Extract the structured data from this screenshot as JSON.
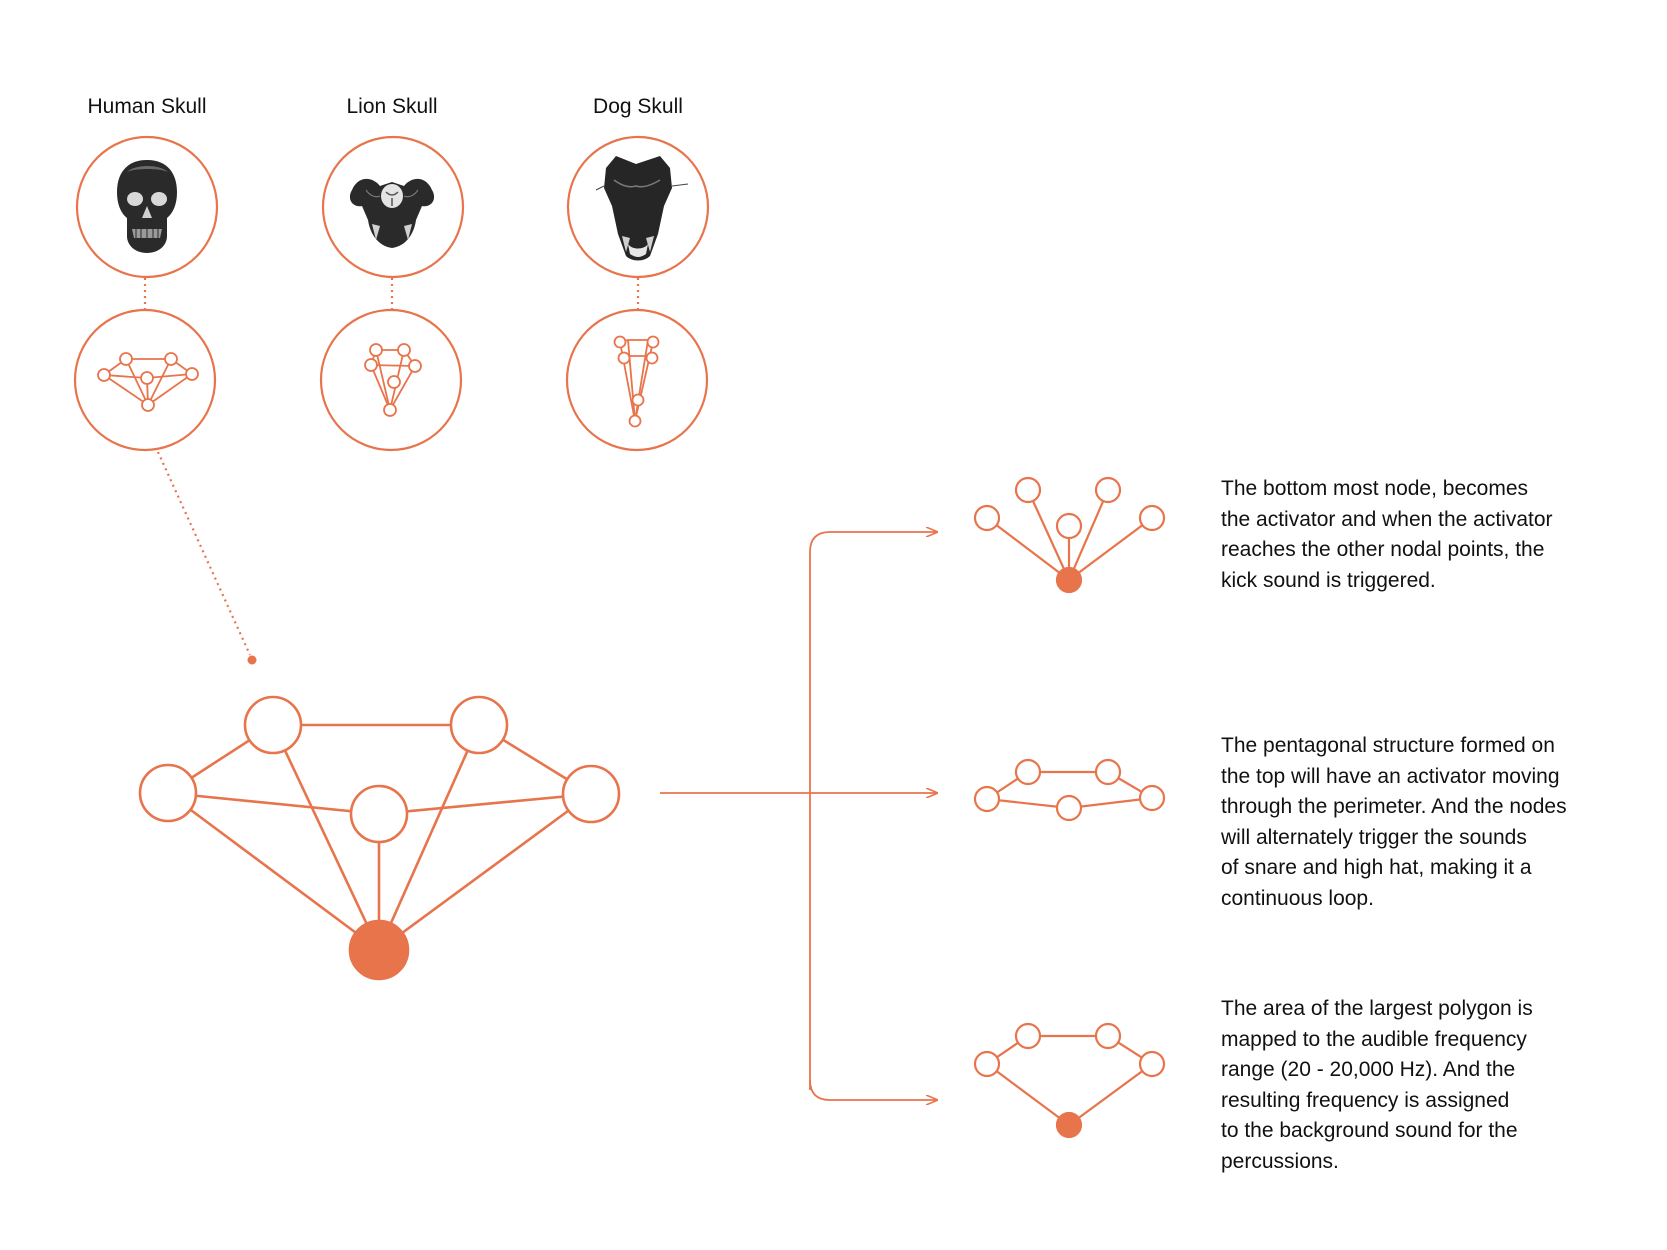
{
  "colors": {
    "accent": "#e8744c",
    "text": "#111111",
    "background": "#ffffff"
  },
  "skulls": [
    {
      "label": "Human Skull",
      "icon": "human-skull-icon"
    },
    {
      "label": "Lion Skull",
      "icon": "lion-skull-icon"
    },
    {
      "label": "Dog Skull",
      "icon": "dog-skull-icon"
    }
  ],
  "descriptions": {
    "kick": {
      "lines": [
        "The bottom most node, becomes",
        "the activator and when the activator",
        "reaches the other nodal points, the",
        "kick sound is triggered."
      ]
    },
    "snare": {
      "lines": [
        "The pentagonal structure formed on",
        "the top will have an activator moving",
        "through the perimeter. And the nodes",
        "will alternately trigger the sounds",
        "of snare and high hat, making it a",
        "continuous loop."
      ]
    },
    "frequency": {
      "lines": [
        "The area of the largest polygon is",
        "mapped to the audible frequency",
        "range (20 - 20,000 Hz). And the",
        "resulting frequency is assigned",
        "to the background sound for the",
        "percussions."
      ]
    }
  }
}
